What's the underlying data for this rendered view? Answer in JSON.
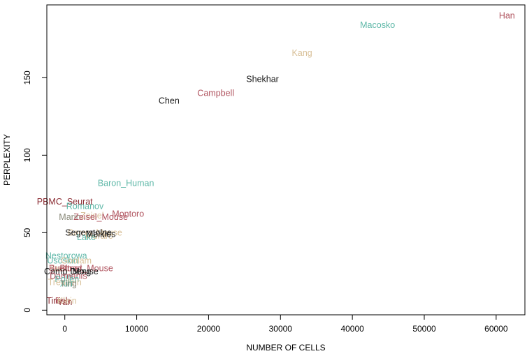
{
  "chart_data": {
    "type": "scatter",
    "title": "",
    "xlabel": "NUMBER OF CELLS",
    "ylabel": "PERPLEXITY",
    "xlim": [
      -2500,
      64000
    ],
    "ylim": [
      -3,
      197
    ],
    "x_ticks": [
      "0",
      "10000",
      "20000",
      "30000",
      "40000",
      "50000",
      "60000"
    ],
    "x_tick_values": [
      0,
      10000,
      20000,
      30000,
      40000,
      50000,
      60000
    ],
    "y_ticks": [
      "0",
      "50",
      "100",
      "150"
    ],
    "y_tick_values": [
      0,
      50,
      100,
      150
    ],
    "grid": false,
    "legend": "none",
    "points": [
      {
        "label": "Han",
        "x": 61500,
        "y": 190,
        "color": "#b0545f"
      },
      {
        "label": "Macosko",
        "x": 43500,
        "y": 184,
        "color": "#5fb8a8"
      },
      {
        "label": "Kang",
        "x": 33000,
        "y": 166,
        "color": "#d9c19a"
      },
      {
        "label": "Shekhar",
        "x": 27500,
        "y": 149,
        "color": "#1a1a1a"
      },
      {
        "label": "Campbell",
        "x": 21000,
        "y": 140,
        "color": "#b0545f"
      },
      {
        "label": "Chen",
        "x": 14500,
        "y": 135,
        "color": "#1a1a1a"
      },
      {
        "label": "Baron_Human",
        "x": 8500,
        "y": 82,
        "color": "#5fb8a8"
      },
      {
        "label": "PBMC_Seurat",
        "x": 0,
        "y": 70,
        "color": "#8a2b32"
      },
      {
        "label": "Romanov",
        "x": 2800,
        "y": 67,
        "color": "#5fb8a8"
      },
      {
        "label": "Montoro",
        "x": 8800,
        "y": 62,
        "color": "#b0545f"
      },
      {
        "label": "Marin",
        "x": 700,
        "y": 60,
        "color": "#8a8a7a"
      },
      {
        "label": "Zeisel",
        "x": 3800,
        "y": 61,
        "color": "#d9c19a"
      },
      {
        "label": "Zeisel_Mouse",
        "x": 5000,
        "y": 60,
        "color": "#b0545f"
      },
      {
        "label": "Baron_Mouse",
        "x": 4200,
        "y": 50,
        "color": "#d9c19a"
      },
      {
        "label": "Segerstolpe",
        "x": 3300,
        "y": 50,
        "color": "#1a1a1a"
      },
      {
        "label": "Muraro",
        "x": 4800,
        "y": 48,
        "color": "#d9c19a"
      },
      {
        "label": "Lake",
        "x": 3000,
        "y": 47,
        "color": "#5fb8a8"
      },
      {
        "label": "Melkies",
        "x": 5000,
        "y": 49,
        "color": "#1a1a1a"
      },
      {
        "label": "Nestorowa",
        "x": 200,
        "y": 35,
        "color": "#5fb8a8"
      },
      {
        "label": "Usoskin",
        "x": -300,
        "y": 32,
        "color": "#5fb8a8"
      },
      {
        "label": "Goolam",
        "x": 1600,
        "y": 32,
        "color": "#d9c19a"
      },
      {
        "label": "Tasic",
        "x": -800,
        "y": 27,
        "color": "#d9c19a"
      },
      {
        "label": "Buettner",
        "x": 100,
        "y": 27,
        "color": "#b0545f"
      },
      {
        "label": "Blood_Mouse",
        "x": 3000,
        "y": 27,
        "color": "#b0545f"
      },
      {
        "label": "Camp_Mouse",
        "x": 900,
        "y": 25,
        "color": "#1a1a1a"
      },
      {
        "label": "Deng",
        "x": 2200,
        "y": 25,
        "color": "#1a1a1a"
      },
      {
        "label": "Darmanis",
        "x": 500,
        "y": 22,
        "color": "#b0545f"
      },
      {
        "label": "Pollen",
        "x": 300,
        "y": 20,
        "color": "#5fb8a8"
      },
      {
        "label": "Treutlein",
        "x": 0,
        "y": 18,
        "color": "#d9c19a"
      },
      {
        "label": "Xin",
        "x": 200,
        "y": 17,
        "color": "#5fb8a8"
      },
      {
        "label": "Ting",
        "x": 500,
        "y": 17,
        "color": "#8a8a7a"
      },
      {
        "label": "Tirosh",
        "x": -900,
        "y": 6,
        "color": "#8a2b32"
      },
      {
        "label": "Fan",
        "x": -300,
        "y": 6,
        "color": "#b0545f"
      },
      {
        "label": "Yan",
        "x": 0,
        "y": 5,
        "color": "#8a2b32"
      },
      {
        "label": "Klein",
        "x": 300,
        "y": 6,
        "color": "#d9c19a"
      }
    ]
  }
}
